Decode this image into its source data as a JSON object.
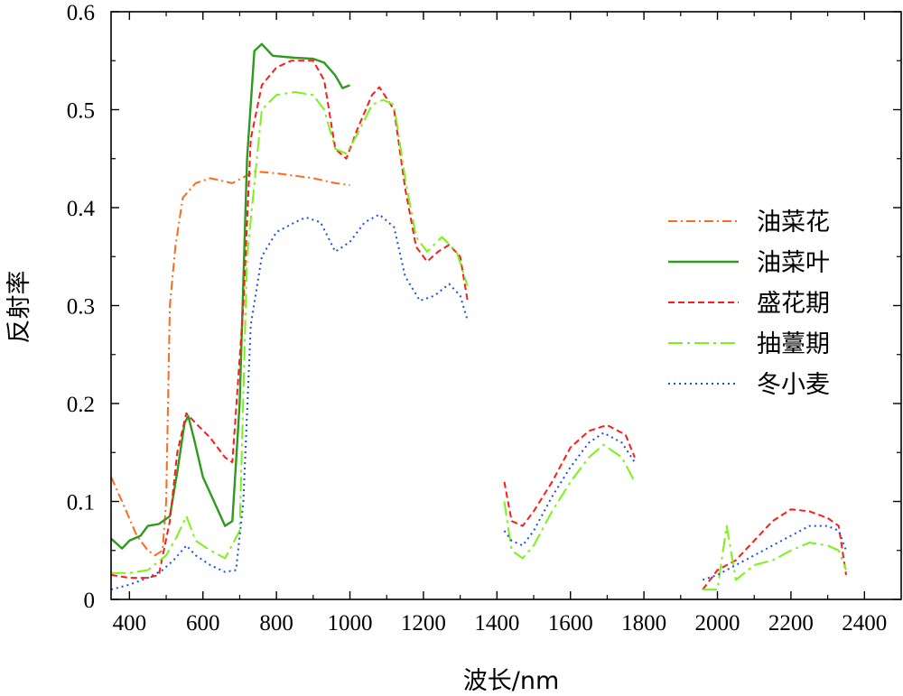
{
  "chart_data": {
    "type": "line",
    "title": "",
    "xlabel": "波长/nm",
    "ylabel": "反射率",
    "xlim": [
      350,
      2500
    ],
    "ylim": [
      0,
      0.6
    ],
    "xticks": [
      400,
      600,
      800,
      1000,
      1200,
      1400,
      1600,
      1800,
      2000,
      2200,
      2400
    ],
    "xtick_labels": [
      "400",
      "600",
      "800",
      "1000",
      "1200",
      "1400",
      "1600",
      "1800",
      "2000",
      "2200",
      "2400"
    ],
    "yticks": [
      0,
      0.1,
      0.2,
      0.3,
      0.4,
      0.5,
      0.6
    ],
    "ytick_labels": [
      "0",
      "0.1",
      "0.2",
      "0.3",
      "0.4",
      "0.5",
      "0.6"
    ],
    "grid": false,
    "legend_position": "right",
    "series": [
      {
        "name": "油菜花",
        "color": "#ff6a1a",
        "dash": "dashdot",
        "segments": [
          [
            [
              350,
              0.125
            ],
            [
              380,
              0.1
            ],
            [
              420,
              0.065
            ],
            [
              450,
              0.05
            ],
            [
              470,
              0.045
            ],
            [
              490,
              0.05
            ],
            [
              500,
              0.1
            ],
            [
              510,
              0.3
            ],
            [
              525,
              0.36
            ],
            [
              545,
              0.41
            ],
            [
              580,
              0.425
            ],
            [
              620,
              0.43
            ],
            [
              680,
              0.425
            ],
            [
              740,
              0.437
            ],
            [
              800,
              0.435
            ],
            [
              900,
              0.43
            ],
            [
              960,
              0.425
            ],
            [
              1000,
              0.423
            ]
          ]
        ]
      },
      {
        "name": "油菜叶",
        "color": "#2e9a1e",
        "dash": "solid",
        "segments": [
          [
            [
              350,
              0.062
            ],
            [
              380,
              0.052
            ],
            [
              400,
              0.06
            ],
            [
              430,
              0.065
            ],
            [
              450,
              0.075
            ],
            [
              480,
              0.077
            ],
            [
              510,
              0.085
            ],
            [
              530,
              0.13
            ],
            [
              550,
              0.18
            ],
            [
              560,
              0.187
            ],
            [
              575,
              0.165
            ],
            [
              600,
              0.125
            ],
            [
              630,
              0.1
            ],
            [
              660,
              0.075
            ],
            [
              680,
              0.08
            ],
            [
              700,
              0.2
            ],
            [
              720,
              0.45
            ],
            [
              740,
              0.56
            ],
            [
              760,
              0.567
            ],
            [
              790,
              0.555
            ],
            [
              850,
              0.553
            ],
            [
              900,
              0.552
            ],
            [
              930,
              0.548
            ],
            [
              960,
              0.535
            ],
            [
              980,
              0.522
            ],
            [
              1000,
              0.525
            ]
          ]
        ]
      },
      {
        "name": "盛花期",
        "color": "#ff1a1a",
        "dash": "dashed",
        "segments": [
          [
            [
              350,
              0.025
            ],
            [
              400,
              0.022
            ],
            [
              450,
              0.022
            ],
            [
              480,
              0.025
            ],
            [
              510,
              0.08
            ],
            [
              530,
              0.15
            ],
            [
              555,
              0.19
            ],
            [
              580,
              0.18
            ],
            [
              620,
              0.165
            ],
            [
              660,
              0.145
            ],
            [
              680,
              0.14
            ],
            [
              710,
              0.3
            ],
            [
              730,
              0.47
            ],
            [
              760,
              0.525
            ],
            [
              800,
              0.543
            ],
            [
              840,
              0.55
            ],
            [
              900,
              0.55
            ],
            [
              930,
              0.53
            ],
            [
              960,
              0.46
            ],
            [
              990,
              0.45
            ],
            [
              1020,
              0.48
            ],
            [
              1060,
              0.515
            ],
            [
              1080,
              0.523
            ],
            [
              1120,
              0.5
            ],
            [
              1150,
              0.42
            ],
            [
              1180,
              0.36
            ],
            [
              1210,
              0.345
            ],
            [
              1240,
              0.355
            ],
            [
              1270,
              0.362
            ],
            [
              1300,
              0.35
            ],
            [
              1320,
              0.305
            ]
          ],
          [
            [
              1420,
              0.12
            ],
            [
              1440,
              0.08
            ],
            [
              1470,
              0.075
            ],
            [
              1500,
              0.09
            ],
            [
              1550,
              0.12
            ],
            [
              1600,
              0.155
            ],
            [
              1650,
              0.172
            ],
            [
              1700,
              0.178
            ],
            [
              1750,
              0.168
            ],
            [
              1775,
              0.145
            ]
          ],
          [
            [
              1960,
              0.01
            ],
            [
              2000,
              0.03
            ],
            [
              2050,
              0.04
            ],
            [
              2100,
              0.06
            ],
            [
              2150,
              0.08
            ],
            [
              2200,
              0.092
            ],
            [
              2250,
              0.09
            ],
            [
              2300,
              0.083
            ],
            [
              2330,
              0.075
            ],
            [
              2350,
              0.025
            ]
          ]
        ]
      },
      {
        "name": "抽薹期",
        "color": "#7cf21a",
        "dash": "longdashdot",
        "segments": [
          [
            [
              350,
              0.027
            ],
            [
              400,
              0.027
            ],
            [
              450,
              0.03
            ],
            [
              500,
              0.045
            ],
            [
              530,
              0.065
            ],
            [
              555,
              0.085
            ],
            [
              580,
              0.06
            ],
            [
              620,
              0.05
            ],
            [
              660,
              0.042
            ],
            [
              700,
              0.07
            ],
            [
              720,
              0.35
            ],
            [
              760,
              0.5
            ],
            [
              800,
              0.515
            ],
            [
              850,
              0.518
            ],
            [
              900,
              0.515
            ],
            [
              930,
              0.5
            ],
            [
              960,
              0.46
            ],
            [
              990,
              0.455
            ],
            [
              1020,
              0.475
            ],
            [
              1060,
              0.505
            ],
            [
              1090,
              0.51
            ],
            [
              1120,
              0.505
            ],
            [
              1150,
              0.43
            ],
            [
              1180,
              0.37
            ],
            [
              1210,
              0.355
            ],
            [
              1250,
              0.37
            ],
            [
              1290,
              0.355
            ],
            [
              1320,
              0.32
            ]
          ],
          [
            [
              1420,
              0.1
            ],
            [
              1440,
              0.05
            ],
            [
              1470,
              0.042
            ],
            [
              1500,
              0.055
            ],
            [
              1550,
              0.09
            ],
            [
              1600,
              0.12
            ],
            [
              1650,
              0.145
            ],
            [
              1690,
              0.158
            ],
            [
              1740,
              0.145
            ],
            [
              1775,
              0.12
            ]
          ],
          [
            [
              1960,
              0.01
            ],
            [
              2000,
              0.01
            ],
            [
              2025,
              0.075
            ],
            [
              2050,
              0.02
            ],
            [
              2100,
              0.035
            ],
            [
              2150,
              0.04
            ],
            [
              2200,
              0.05
            ],
            [
              2250,
              0.058
            ],
            [
              2300,
              0.055
            ],
            [
              2330,
              0.05
            ],
            [
              2350,
              0.03
            ]
          ]
        ]
      },
      {
        "name": "冬小麦",
        "color": "#1a4fe6",
        "dash": "dotted",
        "segments": [
          [
            [
              350,
              0.01
            ],
            [
              400,
              0.015
            ],
            [
              450,
              0.022
            ],
            [
              490,
              0.03
            ],
            [
              520,
              0.04
            ],
            [
              555,
              0.055
            ],
            [
              580,
              0.045
            ],
            [
              620,
              0.035
            ],
            [
              660,
              0.028
            ],
            [
              690,
              0.03
            ],
            [
              710,
              0.1
            ],
            [
              730,
              0.28
            ],
            [
              760,
              0.35
            ],
            [
              800,
              0.375
            ],
            [
              850,
              0.385
            ],
            [
              880,
              0.39
            ],
            [
              920,
              0.385
            ],
            [
              960,
              0.355
            ],
            [
              1000,
              0.365
            ],
            [
              1040,
              0.385
            ],
            [
              1080,
              0.393
            ],
            [
              1120,
              0.38
            ],
            [
              1150,
              0.33
            ],
            [
              1190,
              0.305
            ],
            [
              1230,
              0.31
            ],
            [
              1270,
              0.322
            ],
            [
              1300,
              0.31
            ],
            [
              1320,
              0.285
            ]
          ],
          [
            [
              1420,
              0.07
            ],
            [
              1440,
              0.06
            ],
            [
              1470,
              0.055
            ],
            [
              1500,
              0.07
            ],
            [
              1550,
              0.105
            ],
            [
              1600,
              0.135
            ],
            [
              1650,
              0.16
            ],
            [
              1690,
              0.17
            ],
            [
              1740,
              0.16
            ],
            [
              1775,
              0.14
            ]
          ],
          [
            [
              1960,
              0.02
            ],
            [
              2000,
              0.025
            ],
            [
              2050,
              0.035
            ],
            [
              2100,
              0.045
            ],
            [
              2150,
              0.055
            ],
            [
              2200,
              0.065
            ],
            [
              2250,
              0.075
            ],
            [
              2300,
              0.075
            ],
            [
              2330,
              0.07
            ],
            [
              2350,
              0.05
            ]
          ]
        ]
      }
    ]
  }
}
